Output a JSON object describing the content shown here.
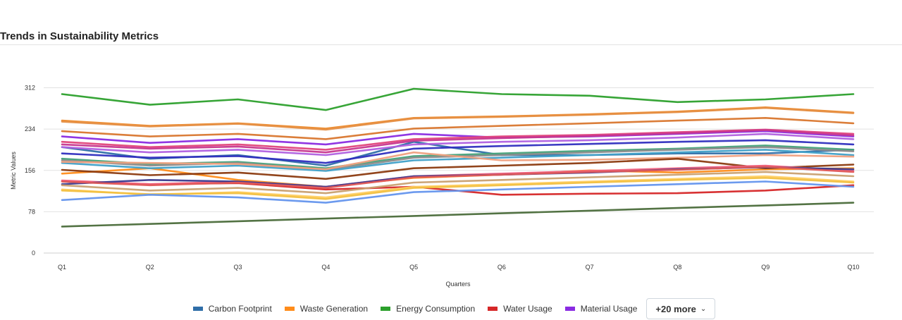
{
  "chart_data": {
    "type": "line",
    "title": "Trends in Sustainability Metrics",
    "xlabel": "Quarters",
    "ylabel": "Metric Values",
    "categories": [
      "Q1",
      "Q2",
      "Q3",
      "Q4",
      "Q5",
      "Q6",
      "Q7",
      "Q8",
      "Q9",
      "Q10"
    ],
    "yticks": [
      0,
      78,
      156,
      234,
      312
    ],
    "ylim": [
      0,
      312
    ],
    "grid": true,
    "legend_position": "bottom",
    "series": [
      {
        "name": "Carbon Footprint",
        "color": "#2f6ea8",
        "values": [
          200,
          178,
          185,
          165,
          210,
          185,
          185,
          188,
          188,
          195
        ],
        "in_legend": true
      },
      {
        "name": "Waste Generation",
        "color": "#ff8c1a",
        "values": [
          150,
          160,
          138,
          125,
          142,
          148,
          156,
          152,
          158,
          160
        ],
        "in_legend": true
      },
      {
        "name": "Energy Consumption",
        "color": "#2ca02c",
        "values": [
          300,
          280,
          290,
          270,
          310,
          300,
          297,
          285,
          290,
          300
        ],
        "in_legend": true
      },
      {
        "name": "Water Usage",
        "color": "#d62728",
        "values": [
          135,
          130,
          132,
          120,
          125,
          110,
          112,
          113,
          118,
          128
        ],
        "in_legend": true
      },
      {
        "name": "Material Usage",
        "color": "#8a2be2",
        "values": [
          220,
          208,
          215,
          205,
          225,
          218,
          220,
          225,
          230,
          220
        ],
        "in_legend": true
      },
      {
        "name": "",
        "color": "#ed8a2a",
        "values": [
          250,
          240,
          245,
          235,
          255,
          258,
          262,
          267,
          275,
          265
        ],
        "in_legend": false
      },
      {
        "name": "",
        "color": "#e58f45",
        "values": [
          248,
          239,
          244,
          233,
          254,
          257,
          261,
          266,
          274,
          264
        ],
        "in_legend": false
      },
      {
        "name": "",
        "color": "#d9772f",
        "values": [
          230,
          220,
          225,
          215,
          235,
          240,
          245,
          250,
          255,
          245
        ],
        "in_legend": false
      },
      {
        "name": "",
        "color": "#e0457b",
        "values": [
          210,
          200,
          205,
          195,
          215,
          220,
          223,
          228,
          233,
          225
        ],
        "in_legend": false
      },
      {
        "name": "",
        "color": "#c7378f",
        "values": [
          205,
          197,
          201,
          190,
          212,
          217,
          221,
          226,
          232,
          222
        ],
        "in_legend": false
      },
      {
        "name": "",
        "color": "#b060e0",
        "values": [
          200,
          190,
          195,
          185,
          205,
          210,
          213,
          218,
          225,
          215
        ],
        "in_legend": false
      },
      {
        "name": "",
        "color": "#2f2fbf",
        "values": [
          188,
          180,
          183,
          170,
          197,
          202,
          206,
          210,
          213,
          205
        ],
        "in_legend": false
      },
      {
        "name": "",
        "color": "#44a27a",
        "values": [
          178,
          168,
          172,
          160,
          183,
          188,
          193,
          197,
          203,
          195
        ],
        "in_legend": false
      },
      {
        "name": "",
        "color": "#8c8c8c",
        "values": [
          175,
          165,
          170,
          157,
          180,
          185,
          190,
          195,
          200,
          192
        ],
        "in_legend": false
      },
      {
        "name": "",
        "color": "#3fa0c8",
        "values": [
          170,
          160,
          165,
          155,
          175,
          180,
          185,
          190,
          195,
          185
        ],
        "in_legend": false
      },
      {
        "name": "",
        "color": "#f0a07f",
        "values": [
          172,
          170,
          168,
          158,
          190,
          175,
          176,
          180,
          185,
          182
        ],
        "in_legend": false
      },
      {
        "name": "",
        "color": "#8b3a0f",
        "values": [
          157,
          147,
          152,
          140,
          160,
          165,
          170,
          178,
          160,
          167
        ],
        "in_legend": false
      },
      {
        "name": "",
        "color": "#f06080",
        "values": [
          137,
          130,
          135,
          125,
          145,
          150,
          155,
          160,
          165,
          155
        ],
        "in_legend": false
      },
      {
        "name": "",
        "color": "#3b3b8f",
        "values": [
          130,
          138,
          135,
          125,
          145,
          148,
          152,
          158,
          162,
          158
        ],
        "in_legend": false
      },
      {
        "name": "",
        "color": "#c9a070",
        "values": [
          128,
          118,
          123,
          113,
          133,
          138,
          143,
          148,
          153,
          145
        ],
        "in_legend": false
      },
      {
        "name": "",
        "color": "#ffd066",
        "values": [
          120,
          110,
          115,
          105,
          125,
          130,
          135,
          140,
          145,
          135
        ],
        "in_legend": false
      },
      {
        "name": "",
        "color": "#f2c040",
        "values": [
          118,
          111,
          113,
          102,
          123,
          128,
          133,
          138,
          142,
          133
        ],
        "in_legend": false
      },
      {
        "name": "",
        "color": "#6495ed",
        "values": [
          100,
          110,
          105,
          95,
          115,
          120,
          125,
          130,
          135,
          125
        ],
        "in_legend": false
      },
      {
        "name": "",
        "color": "#4a6b3a",
        "values": [
          50,
          55,
          60,
          65,
          70,
          75,
          80,
          85,
          90,
          95
        ],
        "in_legend": false
      },
      {
        "name": "",
        "color": "#e05a5a",
        "values": [
          135,
          128,
          133,
          123,
          143,
          148,
          153,
          157,
          163,
          153
        ],
        "in_legend": false
      }
    ]
  },
  "legend": {
    "items": [
      {
        "label": "Carbon Footprint",
        "color": "#2f6ea8"
      },
      {
        "label": "Waste Generation",
        "color": "#ff8c1a"
      },
      {
        "label": "Energy Consumption",
        "color": "#2ca02c"
      },
      {
        "label": "Water Usage",
        "color": "#d62728"
      },
      {
        "label": "Material Usage",
        "color": "#8a2be2"
      }
    ],
    "more_label": "+20 more",
    "more_icon": "chevron-down-icon"
  }
}
